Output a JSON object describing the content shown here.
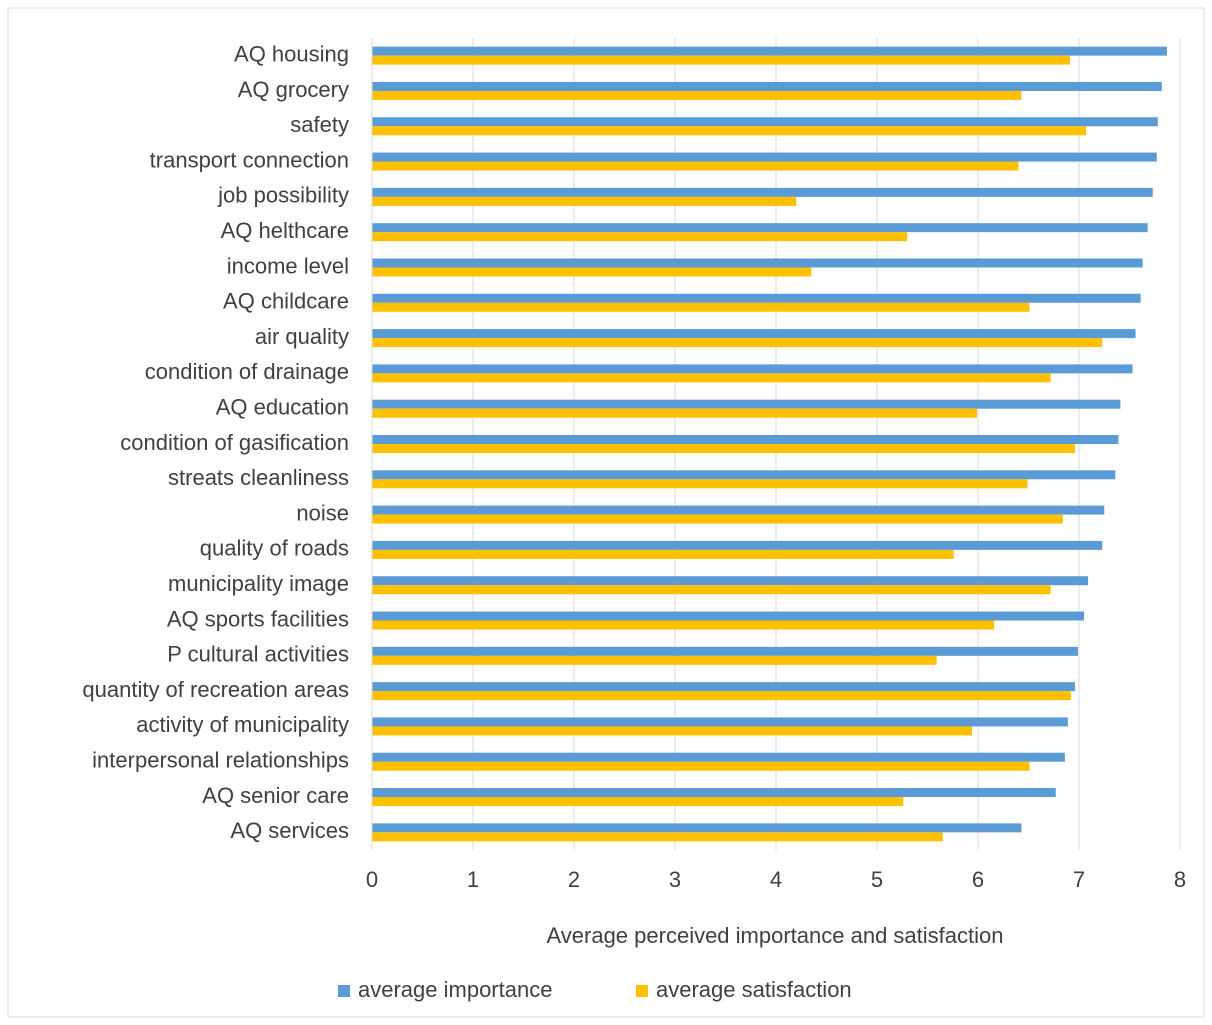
{
  "chart_data": {
    "type": "bar",
    "orientation": "horizontal",
    "x_label": "Average perceived importance and satisfaction",
    "categories": [
      "AQ housing",
      "AQ grocery",
      "safety",
      "transport connection",
      "job possibility",
      "AQ helthcare",
      "income level",
      "AQ childcare",
      "air quality",
      "condition of drainage",
      "AQ education",
      "condition of gasification",
      "streats cleanliness",
      "noise",
      "quality of roads",
      "municipality image",
      "AQ sports facilities",
      "P cultural activities",
      "quantity of recreation areas",
      "activity of municipality",
      "interpersonal relationships",
      "AQ senior care",
      "AQ services"
    ],
    "series": [
      {
        "name": "average importance",
        "color": "#5b9bd5",
        "values": [
          7.87,
          7.82,
          7.78,
          7.77,
          7.73,
          7.68,
          7.63,
          7.61,
          7.56,
          7.53,
          7.41,
          7.39,
          7.36,
          7.25,
          7.23,
          7.09,
          7.05,
          6.99,
          6.96,
          6.89,
          6.86,
          6.77,
          6.43
        ]
      },
      {
        "name": "average satisfaction",
        "color": "#ffc000",
        "values": [
          6.91,
          6.43,
          7.07,
          6.4,
          4.2,
          5.3,
          4.35,
          6.51,
          7.23,
          6.72,
          5.99,
          6.96,
          6.49,
          6.84,
          5.76,
          6.72,
          6.16,
          5.59,
          6.92,
          5.94,
          6.51,
          5.26,
          5.65
        ]
      }
    ],
    "xlim": [
      0,
      8
    ],
    "xticks": [
      0,
      1,
      2,
      3,
      4,
      5,
      6,
      7,
      8
    ],
    "grid": true,
    "legend": "bottom"
  }
}
